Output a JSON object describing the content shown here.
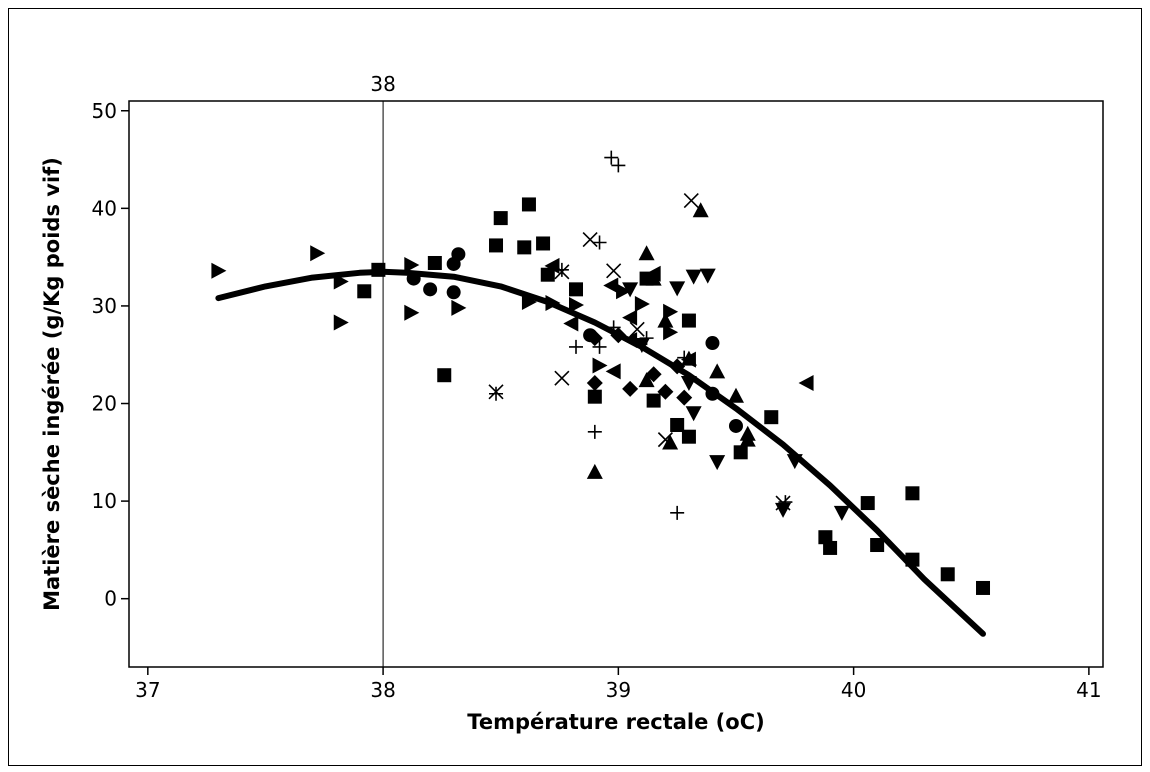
{
  "chart_data": {
    "type": "scatter",
    "title": "",
    "xlabel": "Température rectale (oC)",
    "ylabel": "Matière sèche ingérée (g/Kg poids vif)",
    "xlim": [
      36.92,
      41.06
    ],
    "ylim": [
      -7,
      51
    ],
    "x_ticks": [
      "37",
      "38",
      "39",
      "40",
      "41"
    ],
    "y_ticks": [
      "0",
      "10",
      "20",
      "30",
      "40",
      "50"
    ],
    "grid": false,
    "legend": "none",
    "reference_line": {
      "x": 38,
      "label": "38"
    },
    "fit_curve": {
      "label": "",
      "x": [
        37.3,
        37.5,
        37.7,
        37.9,
        38.0,
        38.1,
        38.3,
        38.5,
        38.7,
        38.9,
        39.1,
        39.3,
        39.5,
        39.7,
        39.9,
        40.1,
        40.3,
        40.55
      ],
      "y": [
        30.8,
        32.0,
        32.9,
        33.4,
        33.5,
        33.4,
        33.0,
        32.0,
        30.4,
        28.3,
        25.8,
        22.9,
        19.5,
        15.8,
        11.6,
        7.0,
        2.0,
        -3.6
      ]
    },
    "series": [
      {
        "marker": "square",
        "points": [
          [
            37.92,
            31.5
          ],
          [
            37.98,
            33.7
          ],
          [
            38.22,
            34.4
          ],
          [
            38.26,
            22.9
          ],
          [
            38.48,
            36.2
          ],
          [
            38.5,
            39.0
          ],
          [
            38.6,
            36.0
          ],
          [
            38.62,
            40.4
          ],
          [
            38.68,
            36.4
          ],
          [
            38.7,
            33.2
          ],
          [
            38.82,
            31.7
          ],
          [
            38.9,
            20.7
          ],
          [
            39.12,
            32.8
          ],
          [
            39.15,
            20.3
          ],
          [
            39.25,
            17.8
          ],
          [
            39.3,
            28.5
          ],
          [
            39.3,
            16.6
          ],
          [
            39.52,
            15.0
          ],
          [
            39.65,
            18.6
          ],
          [
            39.88,
            6.3
          ],
          [
            39.9,
            5.2
          ],
          [
            40.06,
            9.8
          ],
          [
            40.1,
            5.5
          ],
          [
            40.25,
            10.8
          ],
          [
            40.25,
            4.0
          ],
          [
            40.4,
            2.5
          ],
          [
            40.55,
            1.1
          ]
        ]
      },
      {
        "marker": "circle",
        "points": [
          [
            38.13,
            32.8
          ],
          [
            38.2,
            31.7
          ],
          [
            38.3,
            34.3
          ],
          [
            38.32,
            35.3
          ],
          [
            38.3,
            31.4
          ],
          [
            38.88,
            27.0
          ],
          [
            39.4,
            26.2
          ],
          [
            39.4,
            21.0
          ],
          [
            39.5,
            17.7
          ]
        ]
      },
      {
        "marker": "triangle-right",
        "points": [
          [
            37.3,
            33.6
          ],
          [
            37.72,
            35.4
          ],
          [
            37.82,
            28.3
          ],
          [
            37.82,
            32.5
          ],
          [
            38.12,
            34.2
          ],
          [
            38.12,
            29.3
          ],
          [
            38.32,
            29.8
          ],
          [
            38.62,
            30.4
          ],
          [
            38.72,
            30.3
          ],
          [
            38.82,
            30.1
          ],
          [
            38.92,
            23.9
          ],
          [
            39.02,
            31.5
          ],
          [
            39.1,
            30.2
          ],
          [
            39.22,
            27.3
          ],
          [
            39.22,
            29.4
          ]
        ]
      },
      {
        "marker": "triangle-left",
        "points": [
          [
            38.72,
            34.1
          ],
          [
            38.8,
            28.2
          ],
          [
            38.97,
            32.1
          ],
          [
            38.98,
            23.3
          ],
          [
            39.05,
            28.8
          ],
          [
            39.05,
            26.5
          ],
          [
            39.15,
            33.3
          ],
          [
            39.3,
            24.5
          ],
          [
            39.8,
            22.1
          ]
        ]
      },
      {
        "marker": "triangle-up",
        "points": [
          [
            38.9,
            13.0
          ],
          [
            39.12,
            35.4
          ],
          [
            39.15,
            32.8
          ],
          [
            39.12,
            22.4
          ],
          [
            39.2,
            28.5
          ],
          [
            39.22,
            16.0
          ],
          [
            39.3,
            24.6
          ],
          [
            39.42,
            23.3
          ],
          [
            39.35,
            39.8
          ],
          [
            39.5,
            20.8
          ],
          [
            39.55,
            16.3
          ],
          [
            39.55,
            16.9
          ]
        ]
      },
      {
        "marker": "triangle-down",
        "points": [
          [
            39.05,
            31.7
          ],
          [
            39.1,
            26.0
          ],
          [
            39.25,
            31.8
          ],
          [
            39.3,
            22.1
          ],
          [
            39.32,
            19.0
          ],
          [
            39.32,
            33.0
          ],
          [
            39.38,
            33.1
          ],
          [
            39.42,
            14.0
          ],
          [
            39.7,
            9.1
          ],
          [
            39.75,
            14.1
          ],
          [
            39.95,
            8.8
          ]
        ]
      },
      {
        "marker": "diamond",
        "points": [
          [
            38.9,
            22.1
          ],
          [
            38.9,
            26.7
          ],
          [
            39.0,
            27.0
          ],
          [
            39.05,
            21.5
          ],
          [
            39.15,
            23.0
          ],
          [
            39.2,
            21.2
          ],
          [
            39.25,
            23.8
          ],
          [
            39.28,
            20.6
          ]
        ]
      },
      {
        "marker": "x",
        "points": [
          [
            38.48,
            21.2
          ],
          [
            38.76,
            22.6
          ],
          [
            38.76,
            33.5
          ],
          [
            38.88,
            36.8
          ],
          [
            38.98,
            33.6
          ],
          [
            39.08,
            27.6
          ],
          [
            39.2,
            16.3
          ],
          [
            39.31,
            40.8
          ],
          [
            39.7,
            9.8
          ]
        ]
      },
      {
        "marker": "plus",
        "points": [
          [
            38.48,
            21.0
          ],
          [
            38.76,
            33.7
          ],
          [
            38.82,
            25.8
          ],
          [
            38.9,
            17.1
          ],
          [
            38.92,
            36.5
          ],
          [
            38.92,
            25.8
          ],
          [
            38.97,
            45.2
          ],
          [
            38.98,
            27.8
          ],
          [
            39.0,
            44.4
          ],
          [
            39.12,
            26.7
          ],
          [
            39.25,
            8.8
          ],
          [
            39.28,
            24.7
          ],
          [
            39.71,
            9.9
          ]
        ]
      }
    ]
  }
}
